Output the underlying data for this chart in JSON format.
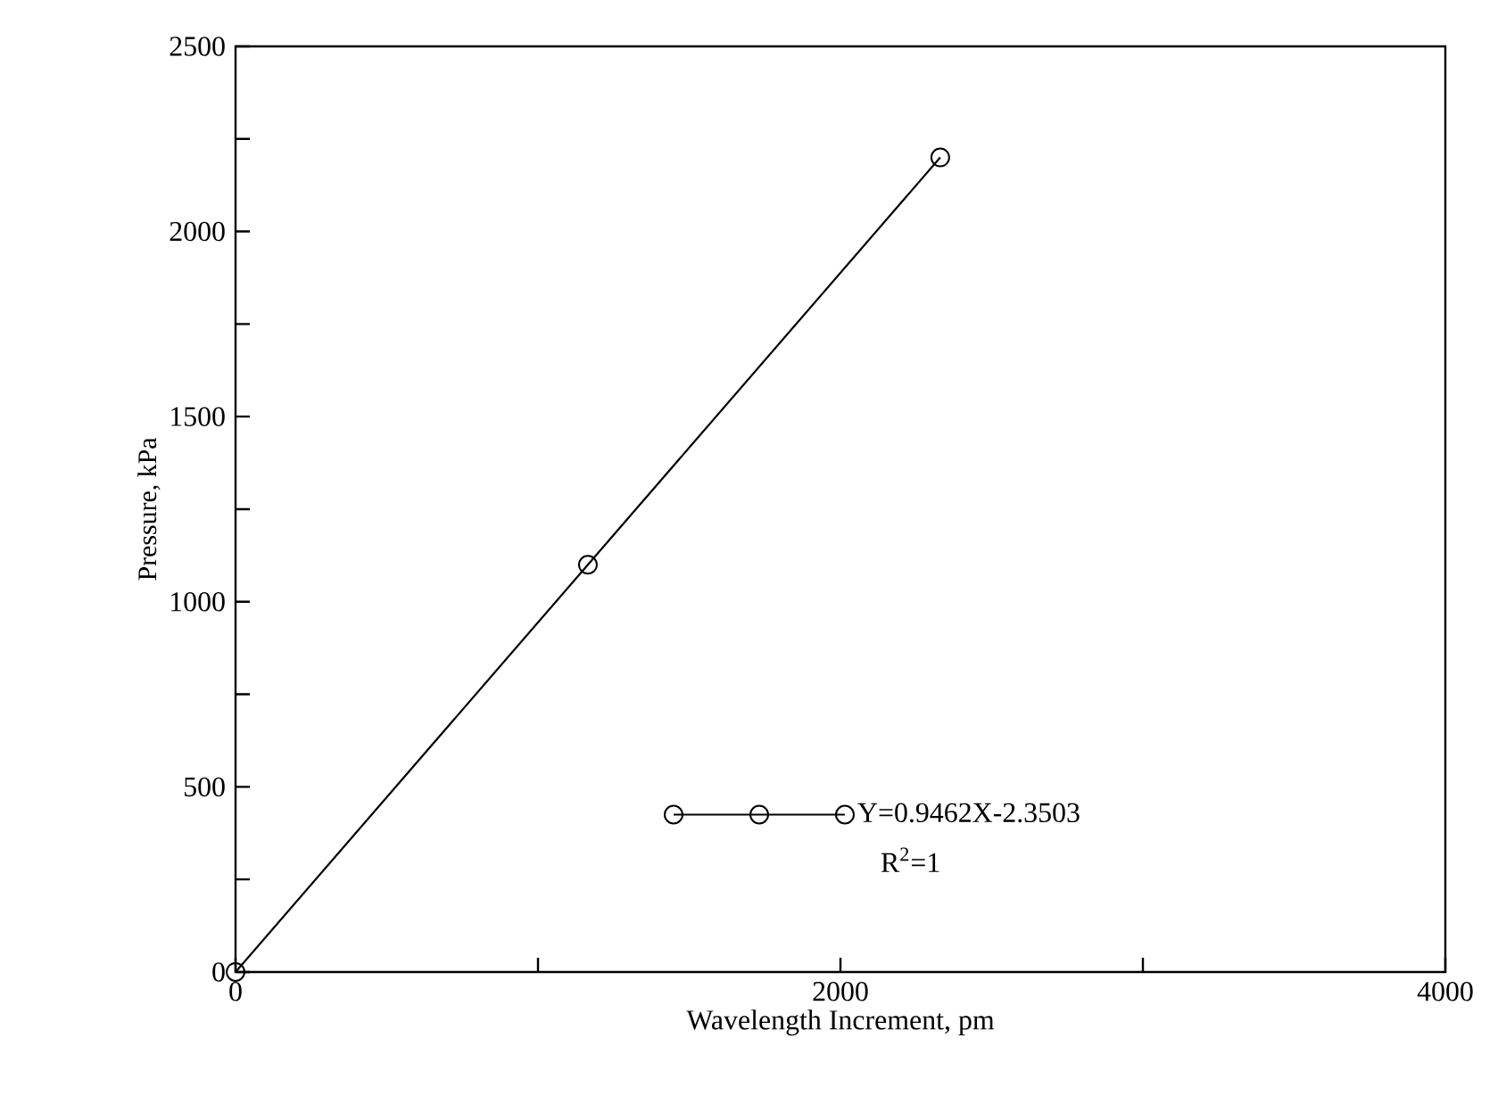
{
  "chart_data": {
    "type": "line",
    "xlabel": "Wavelength Increment, pm",
    "ylabel": "Pressure, kPa",
    "x": [
      0,
      1165,
      2330
    ],
    "series": [
      {
        "name": "Y=0.9462X-2.3503",
        "color": "#000000",
        "values": [
          0,
          1100,
          2200
        ]
      }
    ],
    "xlim": [
      0,
      4000
    ],
    "ylim": [
      0,
      2500
    ],
    "xticks": [
      0,
      {
        "value": 1000,
        "label": null
      },
      2000,
      {
        "value": 3000,
        "label": null
      },
      4000
    ],
    "yticks": [
      0,
      {
        "value": 250,
        "label": null
      },
      500,
      {
        "value": 750,
        "label": null
      },
      1000,
      {
        "value": 1250,
        "label": null
      },
      1500,
      {
        "value": 1750,
        "label": null
      },
      2000,
      {
        "value": 2250,
        "label": null
      },
      2500
    ],
    "annotations": [
      "R$^{2}$=1"
    ],
    "marker": "circle",
    "line_style": "solid",
    "legend": "bottom",
    "grid": false
  }
}
